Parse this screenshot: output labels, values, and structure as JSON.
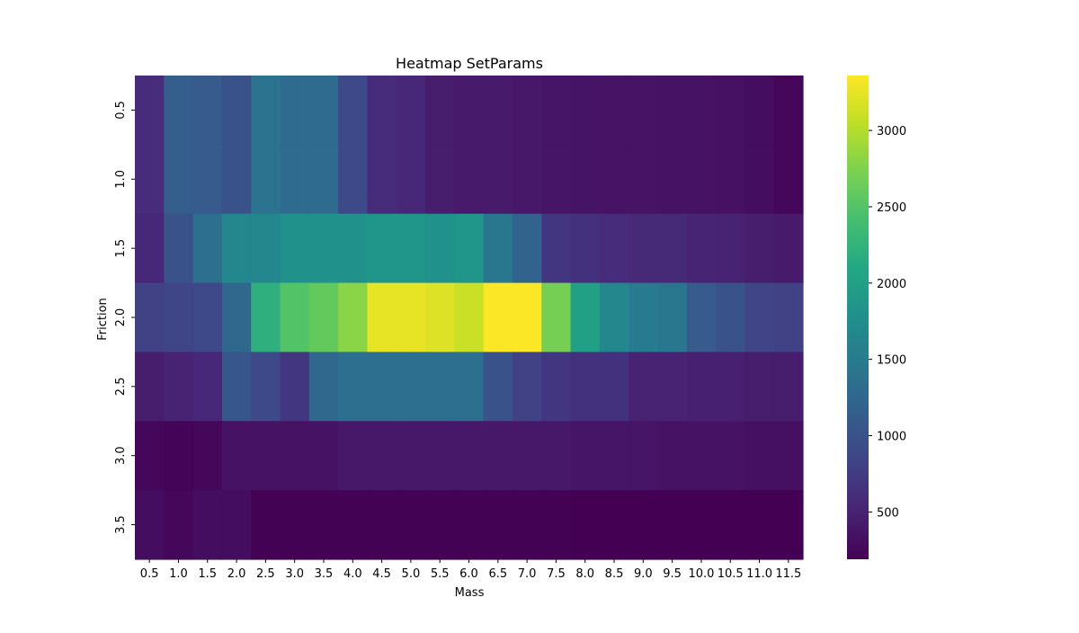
{
  "chart_data": {
    "type": "heatmap",
    "title": "Heatmap SetParams",
    "xlabel": "Mass",
    "ylabel": "Friction",
    "x": [
      "0.5",
      "1.0",
      "1.5",
      "2.0",
      "2.5",
      "3.0",
      "3.5",
      "4.0",
      "4.5",
      "5.0",
      "5.5",
      "6.0",
      "6.5",
      "7.0",
      "7.5",
      "8.0",
      "8.5",
      "9.0",
      "9.5",
      "10.0",
      "10.5",
      "11.0",
      "11.5"
    ],
    "y": [
      "0.5",
      "1.0",
      "1.5",
      "2.0",
      "2.5",
      "3.0",
      "3.5"
    ],
    "z": [
      [
        600,
        1150,
        1100,
        1000,
        1400,
        1300,
        1300,
        900,
        600,
        550,
        450,
        420,
        420,
        400,
        380,
        370,
        360,
        360,
        350,
        350,
        340,
        300,
        250
      ],
      [
        600,
        1150,
        1100,
        1000,
        1400,
        1300,
        1300,
        900,
        600,
        550,
        450,
        420,
        420,
        400,
        380,
        370,
        360,
        360,
        350,
        350,
        340,
        300,
        250
      ],
      [
        550,
        1000,
        1350,
        1650,
        1650,
        1800,
        1800,
        1800,
        1850,
        1850,
        1800,
        1850,
        1450,
        1200,
        700,
        650,
        600,
        580,
        580,
        520,
        500,
        450,
        420
      ],
      [
        800,
        850,
        900,
        1250,
        2200,
        2500,
        2600,
        2800,
        3250,
        3250,
        3200,
        3100,
        3350,
        3350,
        2700,
        2000,
        1650,
        1500,
        1450,
        1100,
        1000,
        850,
        800
      ],
      [
        450,
        500,
        550,
        1050,
        900,
        700,
        1250,
        1350,
        1350,
        1350,
        1350,
        1350,
        1000,
        800,
        700,
        650,
        650,
        500,
        500,
        480,
        480,
        450,
        450
      ],
      [
        250,
        220,
        250,
        350,
        350,
        350,
        350,
        400,
        400,
        400,
        400,
        400,
        400,
        400,
        400,
        380,
        380,
        380,
        350,
        350,
        350,
        330,
        330
      ],
      [
        300,
        250,
        300,
        300,
        200,
        200,
        200,
        200,
        200,
        200,
        200,
        200,
        200,
        200,
        200,
        190,
        190,
        190,
        190,
        190,
        190,
        190,
        190
      ]
    ],
    "colorbar": {
      "min": 190,
      "max": 3360,
      "ticks": [
        500,
        1000,
        1500,
        2000,
        2500,
        3000
      ],
      "colormap": "viridis"
    }
  }
}
